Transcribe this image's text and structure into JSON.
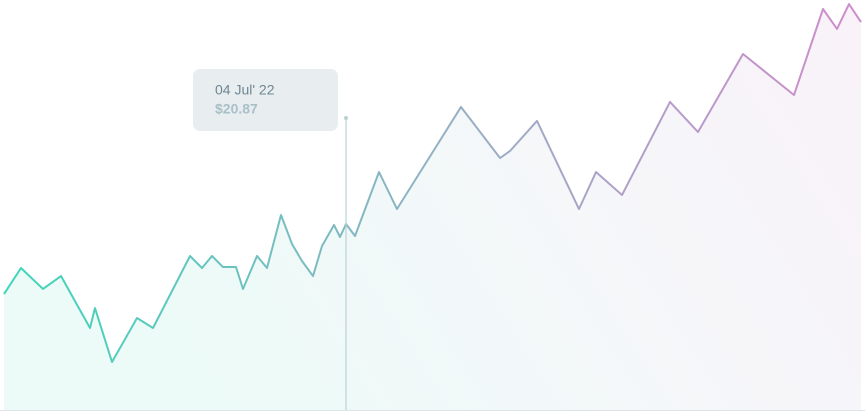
{
  "chart_data": {
    "type": "line",
    "x": [
      0,
      17,
      39,
      57,
      86,
      91,
      108,
      133,
      149,
      186,
      198,
      208,
      219,
      232,
      239,
      253,
      263,
      277,
      288,
      298,
      309,
      318,
      330,
      336,
      342,
      351,
      375,
      393,
      457,
      496,
      506,
      533,
      575,
      592,
      618,
      666,
      694,
      739,
      790,
      819,
      833,
      845,
      857
    ],
    "series": [
      {
        "values": [
          13.01,
          15.93,
          13.58,
          15.03,
          9.2,
          11.44,
          5.39,
          10.32,
          9.2,
          17.28,
          15.93,
          17.28,
          16.04,
          16.04,
          13.58,
          17.28,
          15.93,
          21.88,
          18.63,
          16.72,
          15.03,
          18.4,
          20.76,
          19.41,
          20.87,
          19.52,
          26.7,
          22.55,
          34.0,
          28.27,
          29.06,
          32.43,
          22.55,
          26.7,
          24.12,
          34.56,
          31.19,
          39.94,
          35.34,
          44.99,
          42.75,
          45.55,
          43.53
        ],
        "value_labels": [
          null,
          null,
          null,
          null,
          null,
          null,
          null,
          null,
          null,
          null,
          null,
          null,
          null,
          null,
          null,
          null,
          null,
          null,
          null,
          null,
          null,
          null,
          null,
          null,
          "$20.87",
          null,
          null,
          null,
          null,
          null,
          null,
          null,
          null,
          null,
          null,
          null,
          null,
          null,
          null,
          null,
          null,
          null,
          null
        ],
        "colors": [
          "#3ed6b9",
          "#9aaec4",
          "#d08ccc"
        ]
      }
    ],
    "tooltip": {
      "title": "04 Jul' 22"
    },
    "xlim": [
      0,
      857
    ],
    "ylim": [
      0,
      46
    ]
  }
}
